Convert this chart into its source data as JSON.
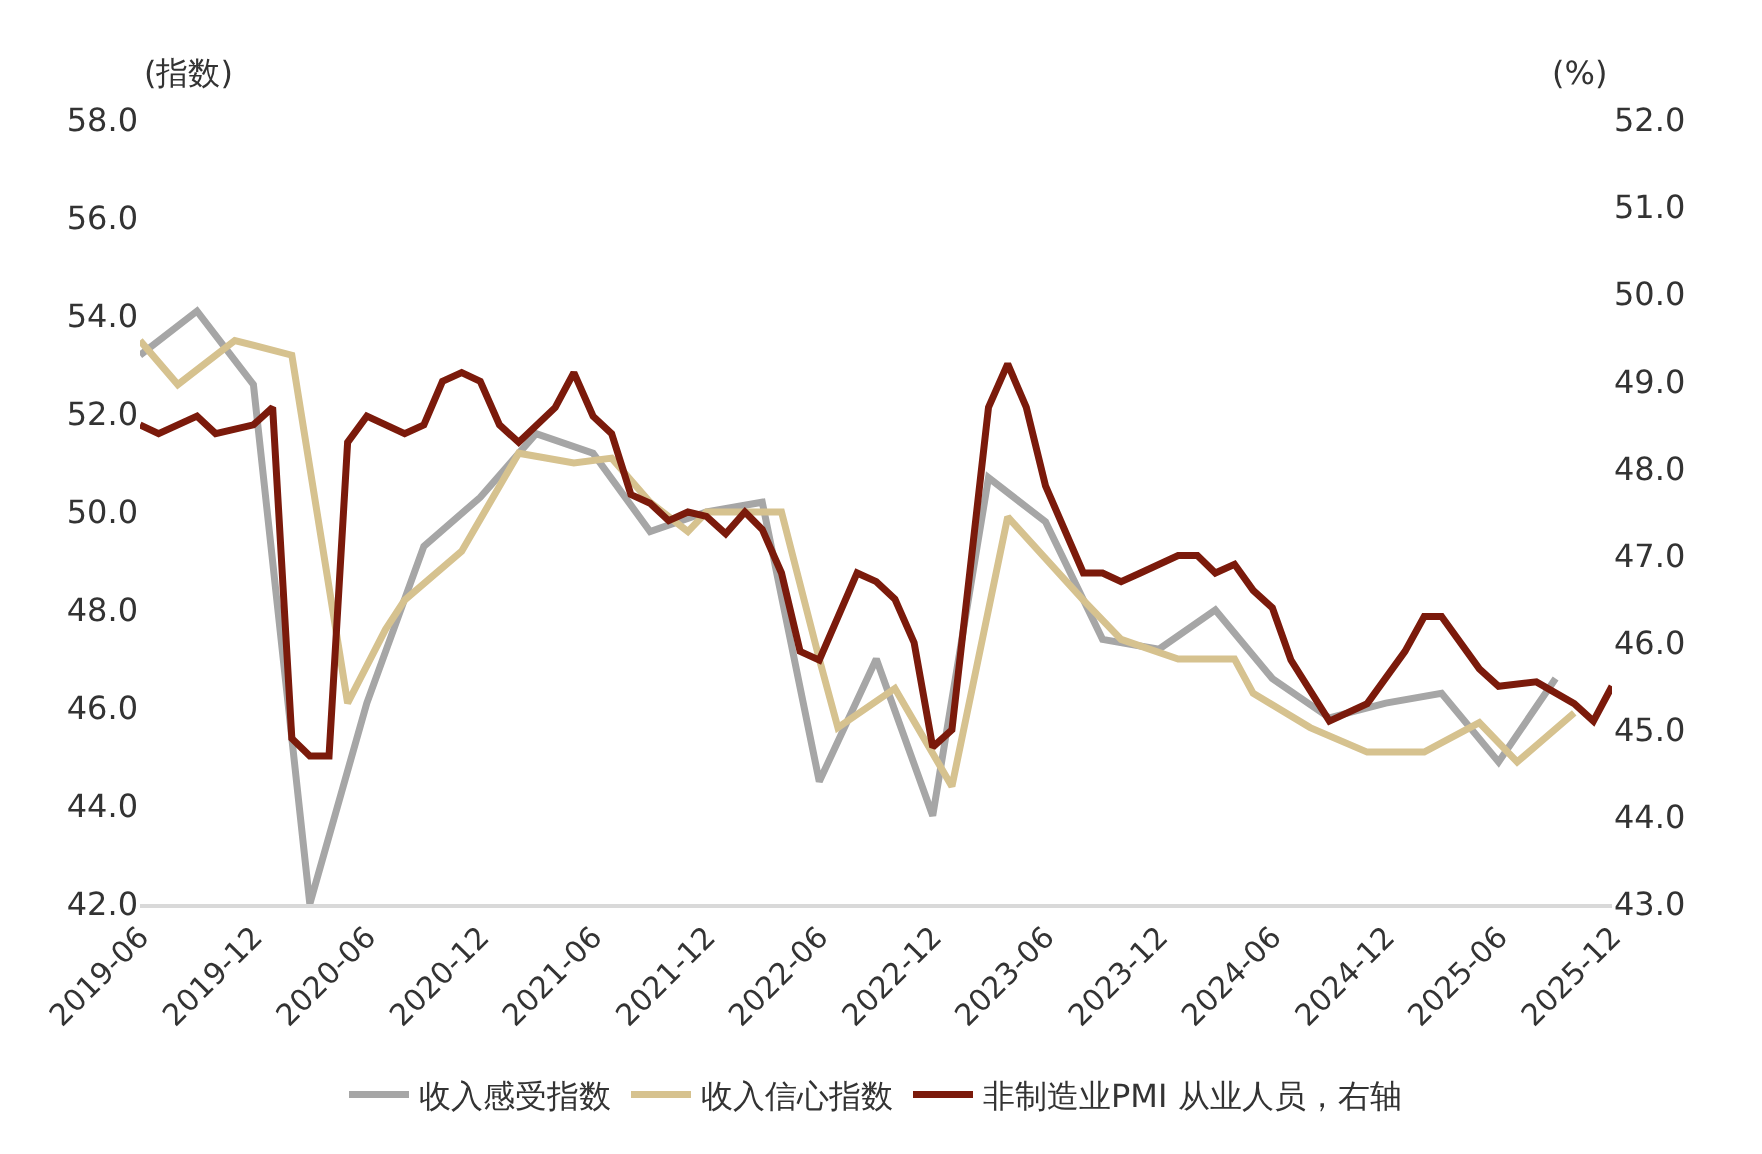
{
  "chart_data": {
    "type": "line",
    "ylabel": "(指数)",
    "y2label": "(%)",
    "xlim": [
      "2019-06",
      "2025-12"
    ],
    "xticks": [
      "2019-06",
      "2019-12",
      "2020-06",
      "2020-12",
      "2021-06",
      "2021-12",
      "2022-06",
      "2022-12",
      "2023-06",
      "2023-12",
      "2024-06",
      "2024-12",
      "2025-06",
      "2025-12"
    ],
    "ylim": [
      42,
      58
    ],
    "yticks": [
      {
        "value": 42,
        "label": "42.0"
      },
      {
        "value": 44,
        "label": "44.0"
      },
      {
        "value": 46,
        "label": "46.0"
      },
      {
        "value": 48,
        "label": "48.0"
      },
      {
        "value": 50,
        "label": "50.0"
      },
      {
        "value": 52,
        "label": "52.0"
      },
      {
        "value": 54,
        "label": "54.0"
      },
      {
        "value": 56,
        "label": "56.0"
      },
      {
        "value": 58,
        "label": "58.0"
      }
    ],
    "y2lim": [
      43,
      52
    ],
    "y2ticks": [
      {
        "value": 43,
        "label": "43.0"
      },
      {
        "value": 44,
        "label": "44.0"
      },
      {
        "value": 45,
        "label": "45.0"
      },
      {
        "value": 46,
        "label": "46.0"
      },
      {
        "value": 47,
        "label": "47.0"
      },
      {
        "value": 48,
        "label": "48.0"
      },
      {
        "value": 49,
        "label": "49.0"
      },
      {
        "value": 50,
        "label": "50.0"
      },
      {
        "value": 51,
        "label": "51.0"
      },
      {
        "value": 52,
        "label": "52.0"
      }
    ],
    "legend": "bottom",
    "marker": "none",
    "line_style": "solid",
    "series": [
      {
        "name": "收入感受指数",
        "color": "#a6a6a6",
        "x": [
          "2019-06",
          "2019-09",
          "2019-12",
          "2020-03",
          "2020-06",
          "2020-09",
          "2020-12",
          "2021-03",
          "2021-06",
          "2021-09",
          "2021-12",
          "2022-03",
          "2022-06",
          "2022-09",
          "2022-12",
          "2023-03",
          "2023-06",
          "2023-09",
          "2023-12",
          "2024-03",
          "2024-06",
          "2024-09",
          "2024-12",
          "2025-03",
          "2025-06",
          "2025-09"
        ],
        "values": [
          53.2,
          54.1,
          52.6,
          42.0,
          46.1,
          49.3,
          50.3,
          51.6,
          51.2,
          49.6,
          50.0,
          50.2,
          44.5,
          47.0,
          43.8,
          50.7,
          49.8,
          47.4,
          47.2,
          48.0,
          46.6,
          45.8,
          46.1,
          46.3,
          44.9,
          46.6
        ]
      },
      {
        "name": "收入信心指数",
        "color": "#d6c28f",
        "x": [
          "2019-06",
          "2019-08",
          "2019-11",
          "2020-02",
          "2020-05",
          "2020-07",
          "2020-08",
          "2020-11",
          "2021-02",
          "2021-05",
          "2021-07",
          "2021-09",
          "2021-11",
          "2021-12",
          "2022-02",
          "2022-04",
          "2022-06",
          "2022-07",
          "2022-10",
          "2023-01",
          "2023-04",
          "2023-08",
          "2023-10",
          "2024-01",
          "2024-04",
          "2024-05",
          "2024-08",
          "2024-11",
          "2025-02",
          "2025-05",
          "2025-07",
          "2025-10"
        ],
        "values": [
          53.5,
          52.6,
          53.5,
          53.2,
          46.1,
          47.6,
          48.2,
          49.2,
          51.2,
          51.0,
          51.1,
          50.2,
          49.6,
          50.0,
          50.0,
          50.0,
          47.0,
          45.6,
          46.4,
          44.4,
          49.9,
          48.2,
          47.4,
          47.0,
          47.0,
          46.3,
          45.6,
          45.1,
          45.1,
          45.7,
          44.9,
          45.9
        ]
      },
      {
        "name": "非制造业PMI 从业人员，右轴",
        "color": "#7b1a0b",
        "axis": "y2",
        "x": [
          "2019-06",
          "2019-07",
          "2019-09",
          "2019-10",
          "2019-12",
          "2020-01",
          "2020-02",
          "2020-03",
          "2020-04",
          "2020-05",
          "2020-06",
          "2020-08",
          "2020-09",
          "2020-10",
          "2020-11",
          "2020-12",
          "2021-01",
          "2021-02",
          "2021-04",
          "2021-05",
          "2021-06",
          "2021-07",
          "2021-08",
          "2021-09",
          "2021-10",
          "2021-11",
          "2021-12",
          "2022-01",
          "2022-02",
          "2022-03",
          "2022-04",
          "2022-05",
          "2022-06",
          "2022-08",
          "2022-09",
          "2022-10",
          "2022-11",
          "2022-12",
          "2023-01",
          "2023-03",
          "2023-04",
          "2023-05",
          "2023-06",
          "2023-08",
          "2023-09",
          "2023-10",
          "2023-11",
          "2024-01",
          "2024-02",
          "2024-03",
          "2024-04",
          "2024-05",
          "2024-06",
          "2024-07",
          "2024-09",
          "2024-11",
          "2025-01",
          "2025-02",
          "2025-03",
          "2025-05",
          "2025-06",
          "2025-08",
          "2025-10",
          "2025-11",
          "2025-12"
        ],
        "values": [
          48.5,
          48.4,
          48.6,
          48.4,
          48.5,
          48.7,
          44.9,
          44.7,
          44.7,
          48.3,
          48.6,
          48.4,
          48.5,
          49.0,
          49.1,
          49.0,
          48.5,
          48.3,
          48.7,
          49.1,
          48.6,
          48.4,
          47.7,
          47.6,
          47.4,
          47.5,
          47.45,
          47.25,
          47.5,
          47.3,
          46.8,
          45.9,
          45.8,
          46.8,
          46.7,
          46.5,
          46.0,
          44.8,
          45.0,
          48.7,
          49.2,
          48.7,
          47.8,
          46.8,
          46.8,
          46.7,
          46.8,
          47.0,
          47.0,
          46.8,
          46.9,
          46.6,
          46.4,
          45.8,
          45.1,
          45.3,
          45.9,
          46.3,
          46.3,
          45.7,
          45.5,
          45.55,
          45.3,
          45.1,
          45.5
        ]
      }
    ]
  }
}
